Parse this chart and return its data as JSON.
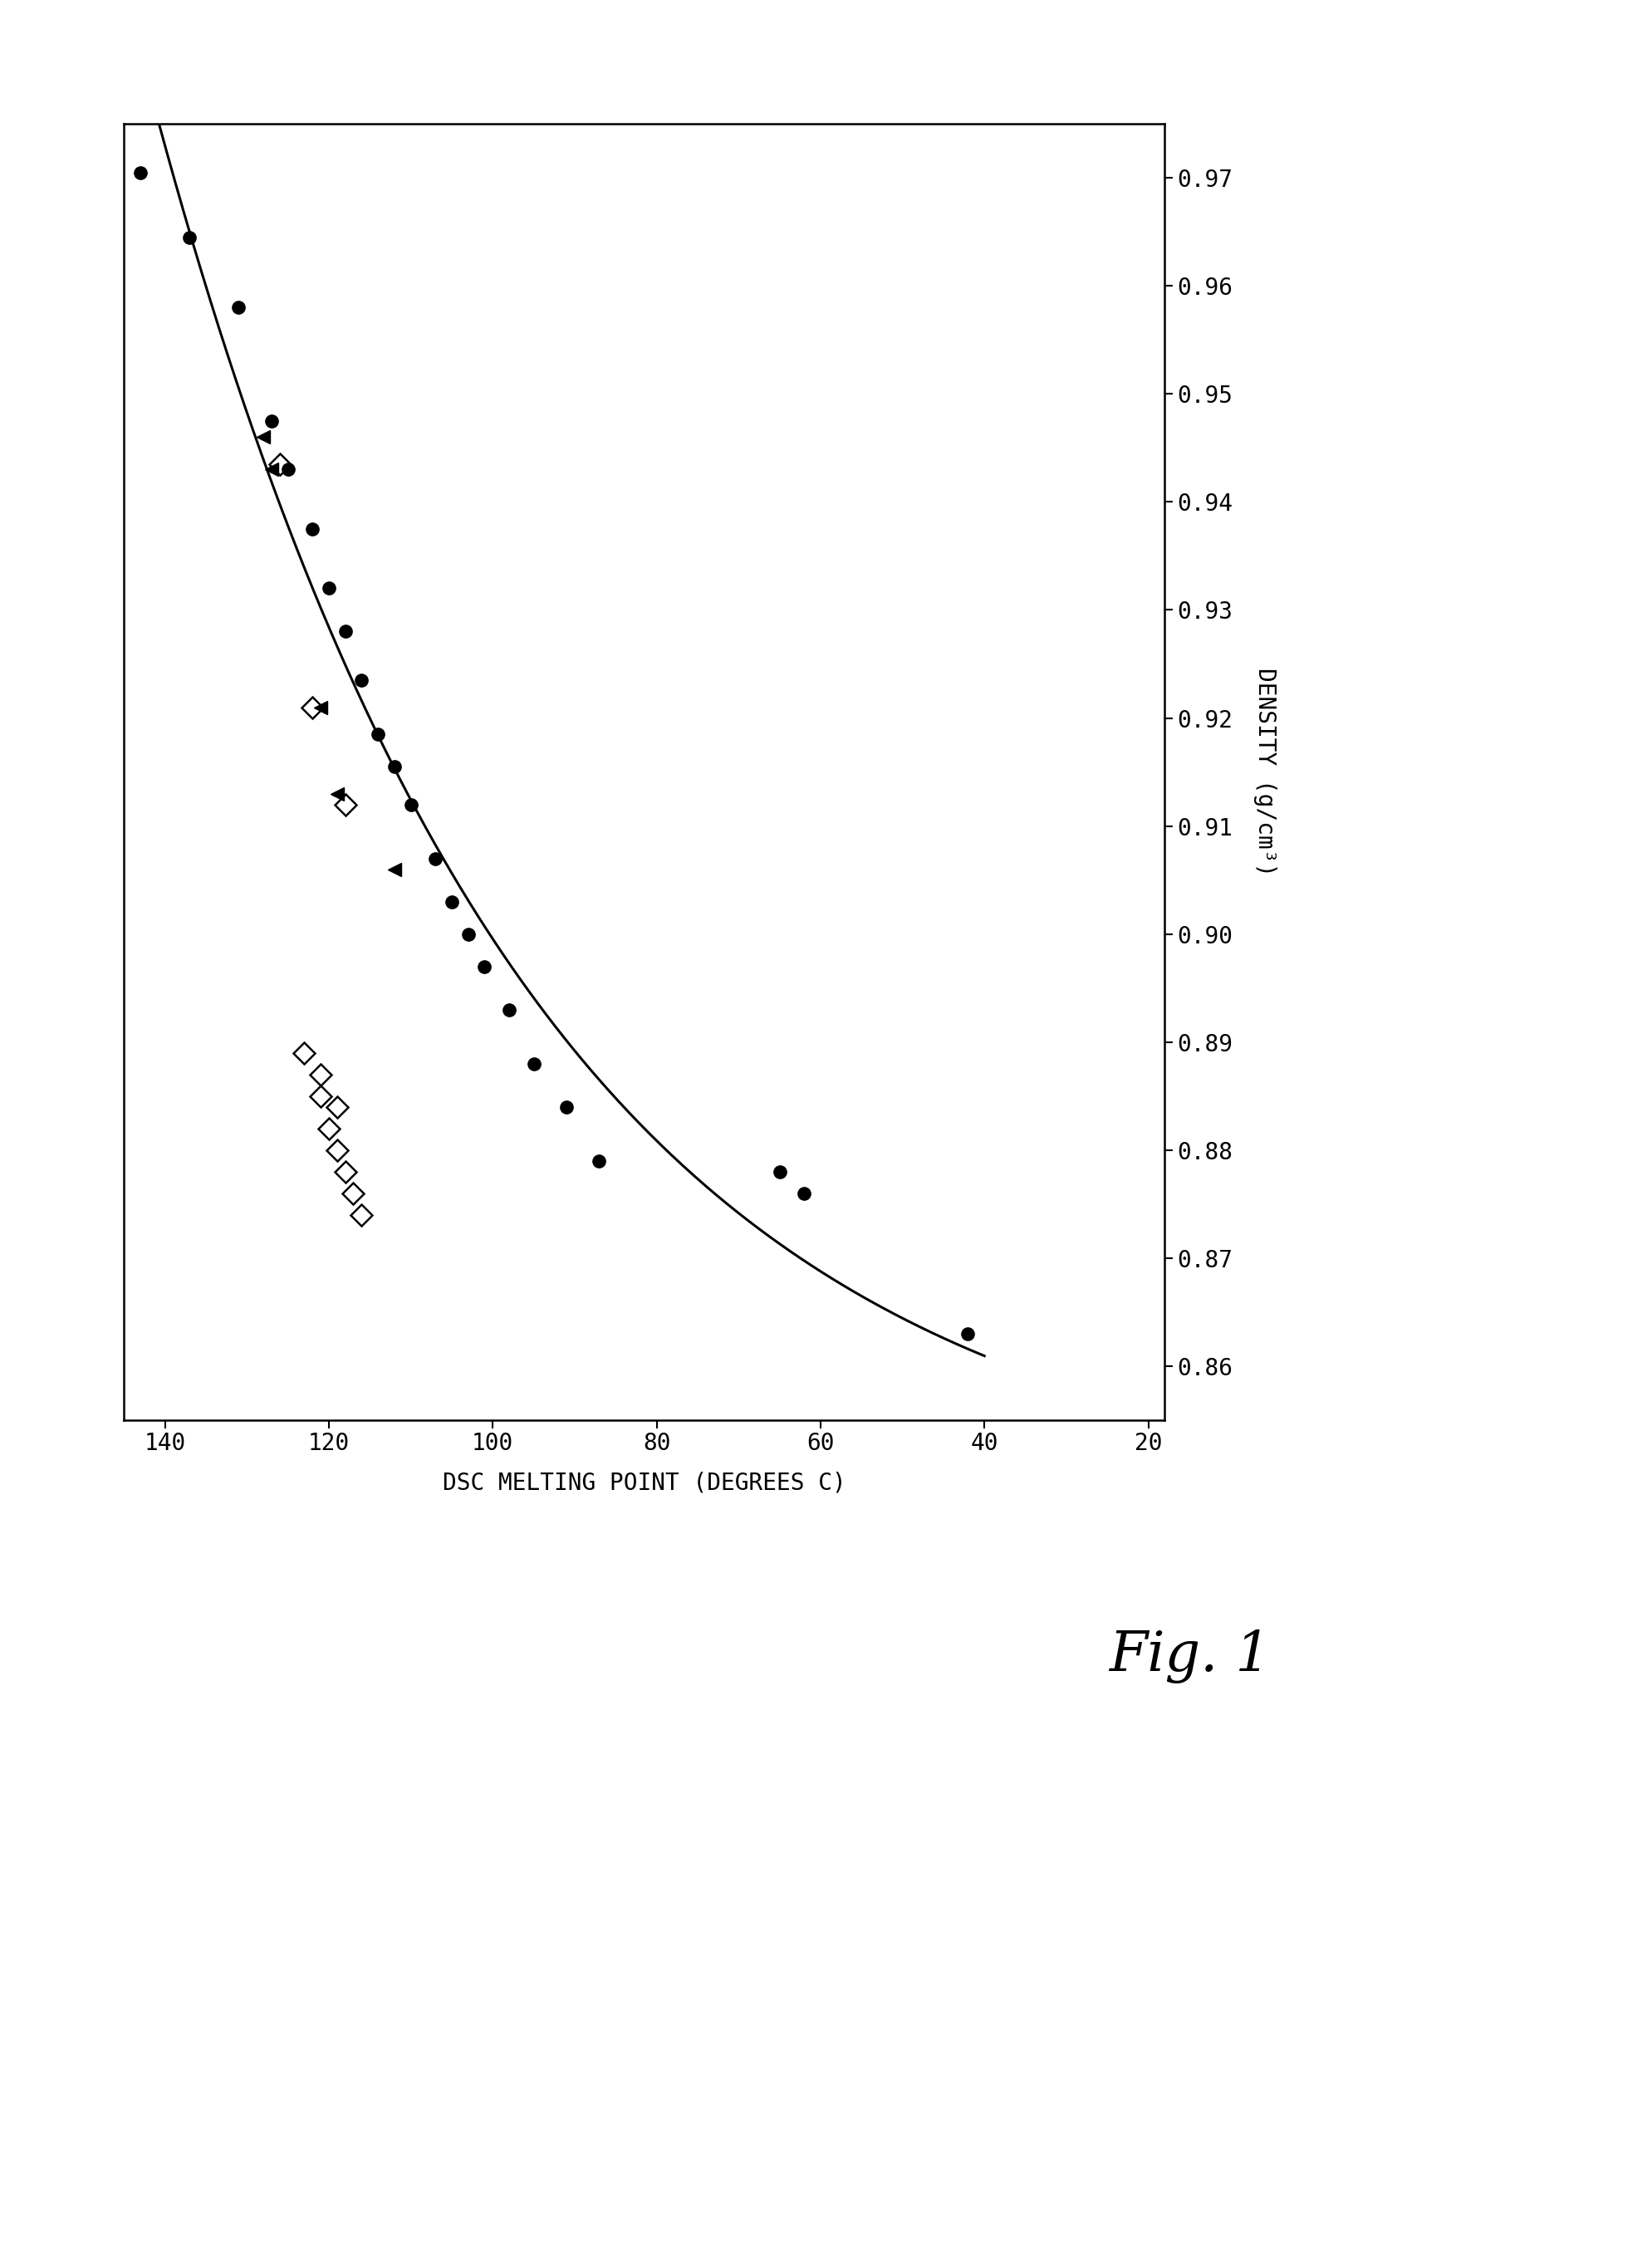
{
  "title": "Fig. 1",
  "xlabel": "DSC MELTING POINT (DEGREES C)",
  "ylabel": "DENSITY (g/cm³)",
  "x_ticks": [
    140,
    120,
    100,
    80,
    60,
    40,
    20
  ],
  "y_ticks": [
    0.86,
    0.87,
    0.88,
    0.89,
    0.9,
    0.91,
    0.92,
    0.93,
    0.94,
    0.95,
    0.96,
    0.97
  ],
  "curve_color": "#000000",
  "circle_points": [
    [
      143,
      0.9705
    ],
    [
      137,
      0.9645
    ],
    [
      131,
      0.958
    ],
    [
      127,
      0.9475
    ],
    [
      125,
      0.943
    ],
    [
      122,
      0.9375
    ],
    [
      120,
      0.932
    ],
    [
      118,
      0.928
    ],
    [
      116,
      0.9235
    ],
    [
      114,
      0.9185
    ],
    [
      112,
      0.9155
    ],
    [
      110,
      0.912
    ],
    [
      107,
      0.907
    ],
    [
      105,
      0.903
    ],
    [
      103,
      0.9
    ],
    [
      101,
      0.897
    ],
    [
      98,
      0.893
    ],
    [
      95,
      0.888
    ],
    [
      91,
      0.884
    ],
    [
      87,
      0.879
    ],
    [
      65,
      0.878
    ],
    [
      62,
      0.876
    ],
    [
      42,
      0.863
    ]
  ],
  "filled_triangle_points": [
    [
      128,
      0.946
    ],
    [
      127,
      0.943
    ],
    [
      121,
      0.921
    ],
    [
      119,
      0.913
    ],
    [
      112,
      0.906
    ]
  ],
  "open_diamond_points_upper": [
    [
      126,
      0.9435
    ],
    [
      122,
      0.921
    ],
    [
      118,
      0.912
    ]
  ],
  "open_diamond_points_lower": [
    [
      123,
      0.889
    ],
    [
      121,
      0.887
    ],
    [
      121,
      0.885
    ],
    [
      119,
      0.884
    ],
    [
      120,
      0.882
    ],
    [
      119,
      0.88
    ],
    [
      118,
      0.878
    ],
    [
      117,
      0.876
    ],
    [
      116,
      0.874
    ]
  ],
  "background_color": "#ffffff"
}
